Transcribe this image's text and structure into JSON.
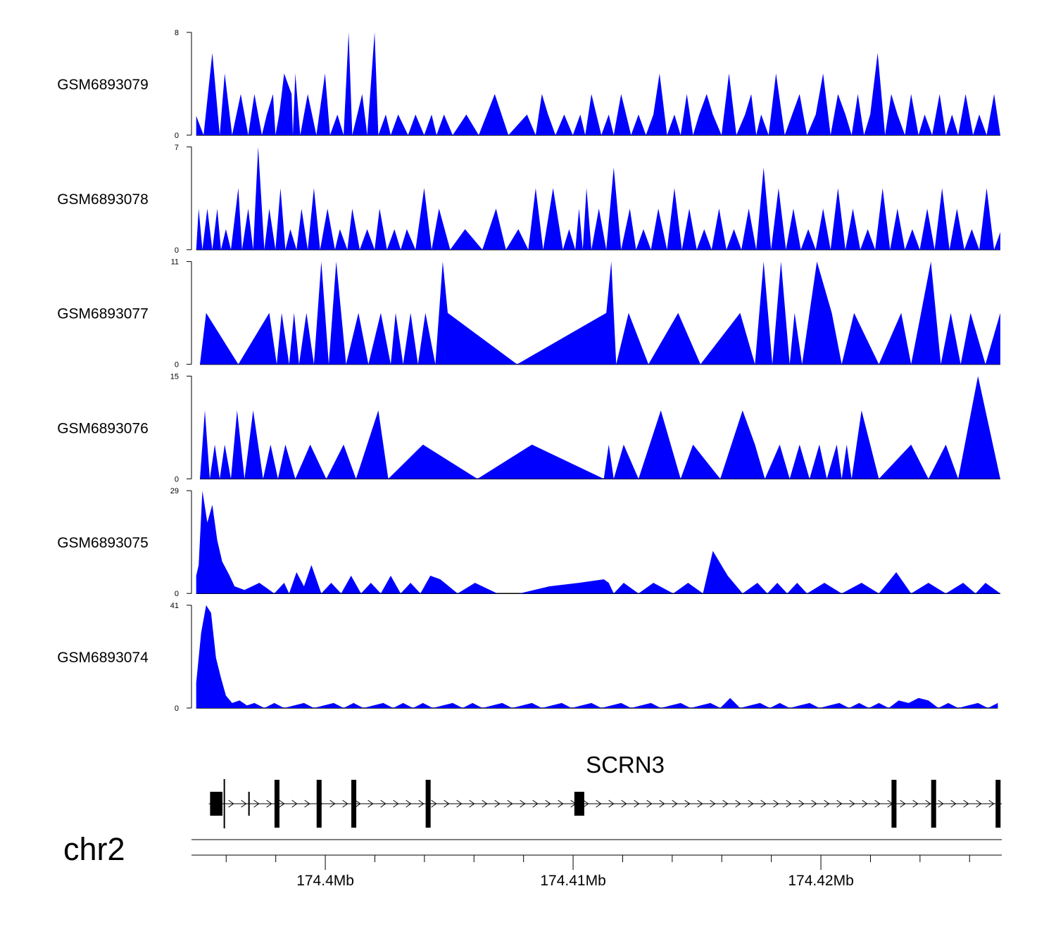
{
  "chart_data": {
    "type": "area",
    "title": "",
    "chromosome": "chr2",
    "gene": "SCRN3",
    "colors": {
      "signal": "#0000ff",
      "gene": "#000000",
      "axis": "#000000"
    },
    "x_range_mb": [
      174.3946,
      174.4273
    ],
    "x_ticks_mb": [
      174.4,
      174.41,
      174.42
    ],
    "x_tick_labels": [
      "174.4Mb",
      "174.41Mb",
      "174.42Mb"
    ],
    "tracks": [
      {
        "name": "GSM6893079",
        "ylim": [
          0,
          8
        ],
        "ymin_label": "0",
        "ymax_label": "8",
        "x": [
          174.39479,
          174.39509,
          174.39544,
          174.39574,
          174.39594,
          174.39624,
          174.39659,
          174.39689,
          174.39714,
          174.39744,
          174.39764,
          174.39789,
          174.39799,
          174.39814,
          174.39834,
          174.39864,
          174.39869,
          174.39879,
          174.39899,
          174.39929,
          174.39964,
          174.39999,
          174.40019,
          174.40049,
          174.40074,
          174.40094,
          174.40109,
          174.40129,
          174.40149,
          174.40169,
          174.40199,
          174.40214,
          174.40244,
          174.40264,
          174.40294,
          174.40334,
          174.40364,
          174.40399,
          174.40429,
          174.40449,
          174.40479,
          174.40514,
          174.40569,
          174.40619,
          174.40684,
          174.40739,
          174.40814,
          174.40849,
          174.40874,
          174.40899,
          174.40929,
          174.40964,
          174.40999,
          174.41029,
          174.41049,
          174.41074,
          174.41114,
          174.41144,
          174.41164,
          174.41194,
          174.41234,
          174.41264,
          174.41294,
          174.41324,
          174.41349,
          174.41379,
          174.41409,
          174.41434,
          174.41459,
          174.41484,
          174.41509,
          174.41539,
          174.41564,
          174.41599,
          174.41629,
          174.41659,
          174.41694,
          174.41719,
          174.41739,
          174.41759,
          174.41789,
          174.41819,
          174.41854,
          174.41884,
          174.41914,
          174.41944,
          174.41979,
          174.42009,
          174.42039,
          174.42069,
          174.42099,
          174.42124,
          174.42149,
          174.42174,
          174.42199,
          174.42229,
          174.42259,
          174.42284,
          174.42309,
          174.42339,
          174.42364,
          174.42394,
          174.42419,
          174.42449,
          174.42479,
          174.42504,
          174.42529,
          174.42554,
          174.42584,
          174.42614,
          174.42639,
          174.42669,
          174.42699,
          174.42724
        ],
        "y": [
          1.5,
          0,
          6.4,
          0,
          4.8,
          0,
          3.2,
          0,
          3.2,
          0,
          1.6,
          3.2,
          0,
          1.6,
          4.8,
          3.2,
          0,
          4.8,
          0,
          3.2,
          0,
          4.8,
          0,
          1.6,
          0,
          8,
          0,
          1.6,
          3.2,
          0,
          8,
          0,
          1.6,
          0,
          1.6,
          0,
          1.6,
          0,
          1.6,
          0,
          1.6,
          0,
          1.6,
          0,
          3.2,
          0,
          1.6,
          0,
          3.2,
          1.6,
          0,
          1.6,
          0,
          1.6,
          0,
          3.2,
          0,
          1.6,
          0,
          3.2,
          0,
          1.6,
          0,
          1.6,
          4.8,
          0,
          1.6,
          0,
          3.2,
          0,
          1.6,
          3.2,
          1.6,
          0,
          4.8,
          0,
          1.6,
          3.2,
          0,
          1.6,
          0,
          4.8,
          0,
          1.6,
          3.2,
          0,
          1.6,
          4.8,
          0,
          3.2,
          1.6,
          0,
          3.2,
          0,
          1.6,
          6.4,
          0,
          3.2,
          1.6,
          0,
          3.2,
          0,
          1.6,
          0,
          3.2,
          0,
          1.6,
          0,
          3.2,
          0,
          1.6,
          0,
          3.2,
          0
        ]
      },
      {
        "name": "GSM6893078",
        "ylim": [
          0,
          7
        ],
        "ymin_label": "0",
        "ymax_label": "7",
        "x": [
          174.39479,
          174.39489,
          174.39504,
          174.39524,
          174.39544,
          174.39564,
          174.39579,
          174.39599,
          174.39619,
          174.39649,
          174.39664,
          174.39689,
          174.39709,
          174.39729,
          174.39754,
          174.39774,
          174.39799,
          174.39819,
          174.39839,
          174.39859,
          174.39884,
          174.39904,
          174.39929,
          174.39954,
          174.39979,
          174.40009,
          174.40039,
          174.40059,
          174.40089,
          174.40109,
          174.40139,
          174.40169,
          174.40199,
          174.40219,
          174.40249,
          174.40279,
          174.40304,
          174.40329,
          174.40364,
          174.40399,
          174.40429,
          174.40459,
          174.40504,
          174.40564,
          174.40634,
          174.40689,
          174.40729,
          174.40779,
          174.40819,
          174.40849,
          174.40879,
          174.40919,
          174.40959,
          174.40984,
          174.41009,
          174.41024,
          174.41039,
          174.41054,
          174.41074,
          174.41104,
          174.41134,
          174.41164,
          174.41194,
          174.41229,
          174.41254,
          174.41284,
          174.41314,
          174.41344,
          174.41379,
          174.41409,
          174.41439,
          174.41469,
          174.41499,
          174.41529,
          174.41559,
          174.41589,
          174.41619,
          174.41649,
          174.41679,
          174.41709,
          174.41739,
          174.41769,
          174.41799,
          174.41829,
          174.41859,
          174.41889,
          174.41919,
          174.41949,
          174.41979,
          174.42009,
          174.42039,
          174.42069,
          174.42099,
          174.42129,
          174.42159,
          174.42189,
          174.42219,
          174.42249,
          174.42279,
          174.42309,
          174.42339,
          174.42369,
          174.42399,
          174.42429,
          174.42459,
          174.42489,
          174.42519,
          174.42549,
          174.42579,
          174.42609,
          174.42639,
          174.42669,
          174.42699,
          174.42724
        ],
        "y": [
          0,
          2.8,
          0,
          2.8,
          0,
          2.8,
          0,
          1.4,
          0,
          4.2,
          0,
          2.8,
          0,
          7,
          0,
          2.8,
          0,
          4.2,
          0,
          1.4,
          0,
          2.8,
          0,
          4.2,
          0,
          2.8,
          0,
          1.4,
          0,
          2.8,
          0,
          1.4,
          0,
          2.8,
          0,
          1.4,
          0,
          1.4,
          0,
          4.2,
          0,
          2.8,
          0,
          1.4,
          0,
          2.8,
          0,
          1.4,
          0,
          4.2,
          0,
          4.2,
          0,
          1.4,
          0,
          2.8,
          0,
          4.2,
          0,
          2.8,
          0,
          5.6,
          0,
          2.8,
          0,
          1.4,
          0,
          2.8,
          0,
          4.2,
          0,
          2.8,
          0,
          1.4,
          0,
          2.8,
          0,
          1.4,
          0,
          2.8,
          0,
          5.6,
          0,
          4.2,
          0,
          2.8,
          0,
          1.4,
          0,
          2.8,
          0,
          4.2,
          0,
          2.8,
          0,
          1.4,
          0,
          4.2,
          0,
          2.8,
          0,
          1.4,
          0,
          2.8,
          0,
          4.2,
          0,
          2.8,
          0,
          1.4,
          0,
          4.2,
          0,
          1.2
        ]
      },
      {
        "name": "GSM6893077",
        "ylim": [
          0,
          11
        ],
        "ymin_label": "0",
        "ymax_label": "11",
        "x": [
          174.39494,
          174.39519,
          174.39649,
          174.39774,
          174.39804,
          174.39824,
          174.39854,
          174.39874,
          174.39894,
          174.39924,
          174.39954,
          174.39984,
          174.40014,
          174.40044,
          174.40084,
          174.40134,
          174.40174,
          174.40224,
          174.40264,
          174.40284,
          174.40314,
          174.40344,
          174.40374,
          174.40404,
          174.40444,
          174.40474,
          174.40494,
          174.40774,
          174.41134,
          174.41154,
          174.41174,
          174.41224,
          174.41304,
          174.41424,
          174.41514,
          174.41674,
          174.41734,
          174.41769,
          174.41804,
          174.41839,
          174.41874,
          174.41894,
          174.41924,
          174.41984,
          174.42044,
          174.42084,
          174.42134,
          174.42234,
          174.42324,
          174.42364,
          174.42404,
          174.42444,
          174.42484,
          174.42524,
          174.42564,
          174.42604,
          174.42664,
          174.42724
        ],
        "y": [
          0,
          5.5,
          0,
          5.5,
          0,
          5.5,
          0,
          5.5,
          0,
          5.5,
          0,
          11,
          0,
          11,
          0,
          5.5,
          0,
          5.5,
          0,
          5.5,
          0,
          5.5,
          0,
          5.5,
          0,
          11,
          5.5,
          0,
          5.5,
          11,
          0,
          5.5,
          0,
          5.5,
          0,
          5.5,
          0,
          11,
          0,
          11,
          0,
          5.5,
          0,
          11,
          5.5,
          0,
          5.5,
          0,
          5.5,
          0,
          5.5,
          11,
          0,
          5.5,
          0,
          5.5,
          0,
          5.5
        ]
      },
      {
        "name": "GSM6893076",
        "ylim": [
          0,
          15
        ],
        "ymin_label": "0",
        "ymax_label": "15",
        "x": [
          174.39494,
          174.39514,
          174.39534,
          174.39554,
          174.39574,
          174.39594,
          174.39619,
          174.39644,
          174.39674,
          174.39709,
          174.39749,
          174.39779,
          174.39809,
          174.39839,
          174.39879,
          174.39939,
          174.40004,
          174.40074,
          174.40124,
          174.40214,
          174.40254,
          174.40394,
          174.40614,
          174.40834,
          174.41124,
          174.41144,
          174.41164,
          174.41204,
          174.41264,
          174.41354,
          174.41434,
          174.41484,
          174.41594,
          174.41684,
          174.41734,
          174.41774,
          174.41834,
          174.41874,
          174.41914,
          174.41954,
          174.41994,
          174.42024,
          174.42064,
          174.42084,
          174.42104,
          174.42124,
          174.42164,
          174.42234,
          174.42364,
          174.42434,
          174.42504,
          174.42554,
          174.42634,
          174.42724
        ],
        "y": [
          0,
          10,
          0,
          5,
          0,
          5,
          0,
          10,
          0,
          10,
          0,
          5,
          0,
          5,
          0,
          5,
          0,
          5,
          0,
          10,
          0,
          5,
          0,
          5,
          0,
          5,
          0,
          5,
          0,
          10,
          0,
          5,
          0,
          10,
          5,
          0,
          5,
          0,
          5,
          0,
          5,
          0,
          5,
          0,
          5,
          0,
          10,
          0,
          5,
          0,
          5,
          0,
          15,
          0
        ]
      },
      {
        "name": "GSM6893075",
        "ylim": [
          0,
          29
        ],
        "ymin_label": "0",
        "ymax_label": "29",
        "x": [
          174.39479,
          174.39489,
          174.39504,
          174.39524,
          174.39544,
          174.39564,
          174.39584,
          174.39614,
          174.39634,
          174.39674,
          174.39734,
          174.39794,
          174.39834,
          174.39854,
          174.39884,
          174.39914,
          174.39944,
          174.39984,
          174.40024,
          174.40064,
          174.40104,
          174.40144,
          174.40184,
          174.40224,
          174.40264,
          174.40304,
          174.40344,
          174.40384,
          174.40424,
          174.40464,
          174.40534,
          174.40604,
          174.40694,
          174.40784,
          174.40904,
          174.41024,
          174.41124,
          174.41144,
          174.41164,
          174.41204,
          174.41264,
          174.41324,
          174.41404,
          174.41464,
          174.41524,
          174.41564,
          174.41624,
          174.41684,
          174.41744,
          174.41784,
          174.41824,
          174.41864,
          174.41904,
          174.41944,
          174.42014,
          174.42084,
          174.42164,
          174.42234,
          174.42304,
          174.42364,
          174.42434,
          174.42504,
          174.42574,
          174.42624,
          174.42664,
          174.42724
        ],
        "y": [
          5,
          8,
          29,
          20,
          25,
          15,
          9,
          5,
          2,
          1,
          3,
          0,
          3,
          0,
          6,
          2,
          8,
          0,
          3,
          0,
          5,
          0,
          3,
          0,
          5,
          0,
          3,
          0,
          5,
          4,
          0,
          3,
          0,
          0,
          2,
          3,
          4,
          3,
          0,
          3,
          0,
          3,
          0,
          3,
          0,
          12,
          5,
          0,
          3,
          0,
          3,
          0,
          3,
          0,
          3,
          0,
          3,
          0,
          6,
          0,
          3,
          0,
          3,
          0,
          3,
          0
        ]
      },
      {
        "name": "GSM6893074",
        "ylim": [
          0,
          41
        ],
        "ymin_label": "0",
        "ymax_label": "41",
        "x": [
          174.39479,
          174.39499,
          174.39519,
          174.39539,
          174.39559,
          174.39579,
          174.39599,
          174.39624,
          174.39654,
          174.39684,
          174.39714,
          174.39754,
          174.39794,
          174.39834,
          174.39874,
          174.39914,
          174.39954,
          174.39994,
          174.40034,
          174.40074,
          174.40114,
          174.40154,
          174.40194,
          174.40234,
          174.40274,
          174.40314,
          174.40354,
          174.40394,
          174.40434,
          174.40474,
          174.40514,
          174.40554,
          174.40594,
          174.40634,
          174.40674,
          174.40714,
          174.40754,
          174.40794,
          174.40834,
          174.40874,
          174.40914,
          174.40954,
          174.40994,
          174.41034,
          174.41074,
          174.41114,
          174.41154,
          174.41194,
          174.41234,
          174.41274,
          174.41314,
          174.41354,
          174.41394,
          174.41434,
          174.41474,
          174.41514,
          174.41554,
          174.41594,
          174.41634,
          174.41674,
          174.41714,
          174.41754,
          174.41794,
          174.41834,
          174.41874,
          174.41914,
          174.41954,
          174.41994,
          174.42034,
          174.42074,
          174.42114,
          174.42154,
          174.42194,
          174.42234,
          174.42274,
          174.42314,
          174.42354,
          174.42394,
          174.42434,
          174.42474,
          174.42514,
          174.42554,
          174.42594,
          174.42634,
          174.42674,
          174.42714
        ],
        "y": [
          10,
          30,
          41,
          38,
          20,
          12,
          5,
          2,
          3,
          1,
          2,
          0,
          2,
          0,
          1,
          2,
          0,
          1,
          2,
          0,
          2,
          0,
          1,
          2,
          0,
          2,
          0,
          2,
          0,
          1,
          2,
          0,
          2,
          0,
          1,
          2,
          0,
          1,
          2,
          0,
          1,
          2,
          0,
          1,
          2,
          0,
          1,
          2,
          0,
          1,
          2,
          0,
          1,
          2,
          0,
          1,
          2,
          0,
          4,
          0,
          1,
          2,
          0,
          2,
          0,
          1,
          2,
          0,
          1,
          2,
          0,
          2,
          0,
          2,
          0,
          3,
          2,
          4,
          3,
          0,
          2,
          0,
          1,
          2,
          0,
          2
        ]
      }
    ],
    "gene_model": {
      "strand": "+",
      "start_mb": 174.3953,
      "end_mb": 174.4273,
      "exons_mb": [
        [
          174.39535,
          174.39585
        ],
        [
          174.39689,
          174.39695
        ],
        [
          174.39795,
          174.39815
        ],
        [
          174.39965,
          174.39985
        ],
        [
          174.40105,
          174.40125
        ],
        [
          174.40405,
          174.40425
        ],
        [
          174.41005,
          174.41045
        ],
        [
          174.42285,
          174.42305
        ],
        [
          174.42445,
          174.42465
        ],
        [
          174.42705,
          174.42725
        ]
      ]
    }
  }
}
